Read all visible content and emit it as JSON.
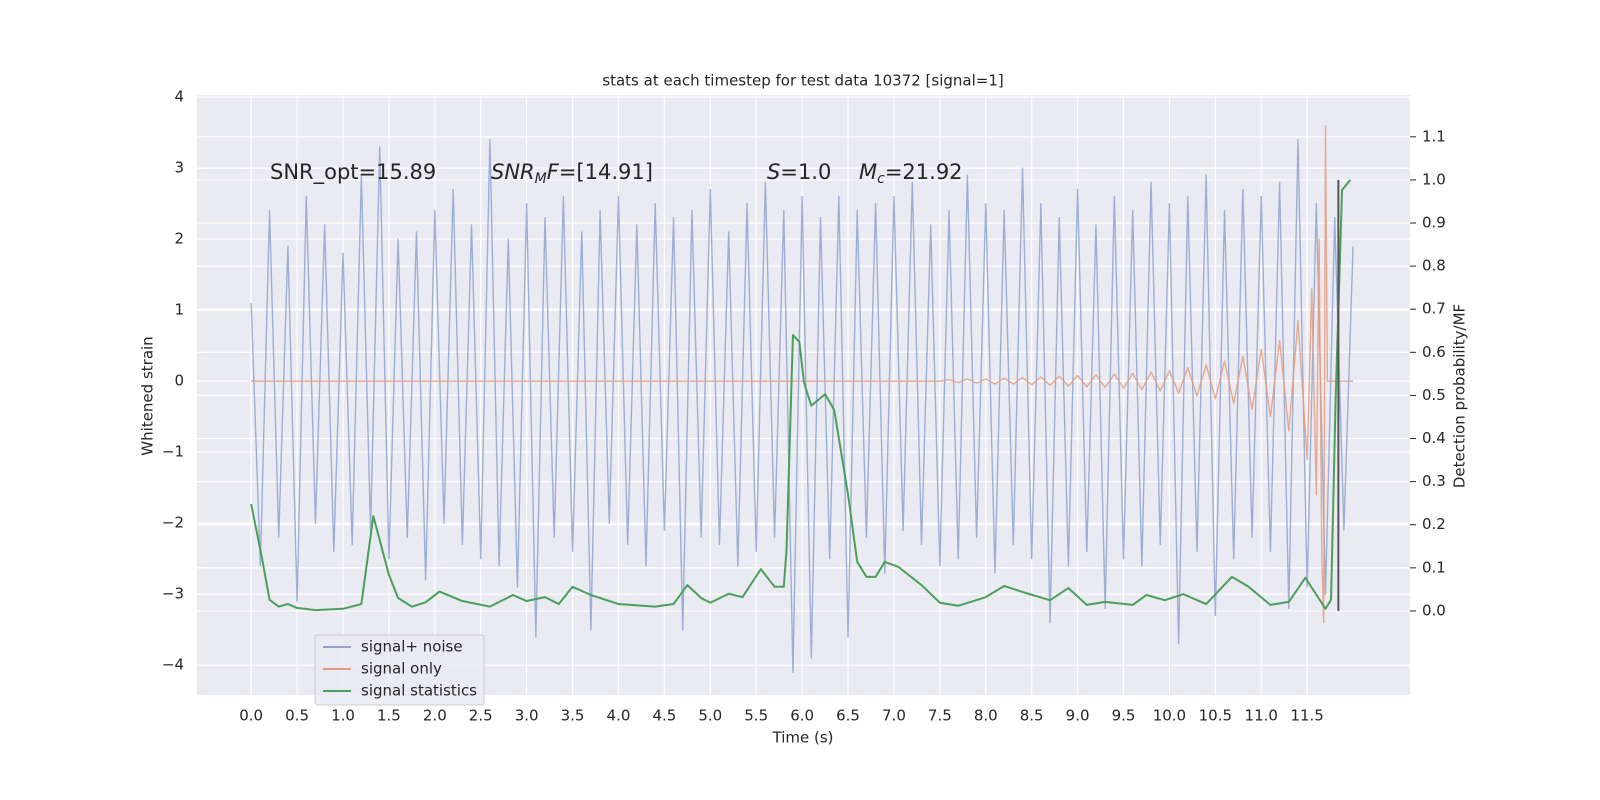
{
  "chart_data": {
    "type": "line",
    "title": "stats at each timestep for test data 10372 [signal=1]",
    "xlabel": "Time (s)",
    "ylabel": "Whitened strain",
    "y2label": "Detection probability/MF",
    "background": "#eaeaf2",
    "grid": true,
    "legend": "lower left",
    "xlim": [
      -0.59,
      12.62
    ],
    "ylim": [
      -4.42,
      4.03
    ],
    "y2lim": [
      -0.195,
      1.197
    ],
    "xticks": [
      {
        "value": 0,
        "label": "0.0"
      },
      0.5,
      {
        "value": 1,
        "label": "1.0"
      },
      1.5,
      {
        "value": 2,
        "label": "2.0"
      },
      2.5,
      {
        "value": 3,
        "label": "3.0"
      },
      3.5,
      {
        "value": 4,
        "label": "4.0"
      },
      4.5,
      {
        "value": 5,
        "label": "5.0"
      },
      5.5,
      {
        "value": 6,
        "label": "6.0"
      },
      6.5,
      {
        "value": 7,
        "label": "7.0"
      },
      7.5,
      {
        "value": 8,
        "label": "8.0"
      },
      8.5,
      {
        "value": 9,
        "label": "9.0"
      },
      9.5,
      {
        "value": 10,
        "label": "10.0"
      },
      10.5,
      {
        "value": 11,
        "label": "11.0"
      },
      11.5
    ],
    "yticks": [
      {
        "value": -4,
        "label": "−4"
      },
      {
        "value": -3,
        "label": "−3"
      },
      {
        "value": -2,
        "label": "−2"
      },
      {
        "value": -1,
        "label": "−1"
      },
      0,
      1,
      2,
      3,
      4
    ],
    "y2ticks": [
      {
        "value": 0,
        "label": "0.0"
      },
      0.1,
      0.2,
      0.3,
      0.4,
      0.5,
      0.6,
      0.7,
      0.8,
      0.9,
      {
        "value": 1,
        "label": "1.0"
      },
      1.1
    ],
    "annotations": [
      {
        "parts": [
          {
            "text": "SNR_opt=15.89"
          }
        ]
      },
      {
        "parts": [
          {
            "text": "SNR",
            "style": "italic"
          },
          {
            "text": "M",
            "style": "italic-sub"
          },
          {
            "text": "F",
            "style": "italic"
          },
          {
            "text": "=[14.91]"
          }
        ]
      },
      {
        "parts": [
          {
            "text": "S",
            "style": "italic"
          },
          {
            "text": "=1.0"
          }
        ]
      },
      {
        "parts": [
          {
            "text": "M",
            "style": "italic"
          },
          {
            "text": "c",
            "style": "italic-sub"
          },
          {
            "text": "=21.92"
          }
        ]
      }
    ],
    "vline": {
      "x": 11.84,
      "y2": [
        0,
        1
      ],
      "color": "#555555"
    },
    "series": [
      {
        "name": "signal+ noise",
        "color": "#8fa3cf",
        "axis": "y",
        "x": [
          0,
          0.1,
          0.2,
          0.3,
          0.4,
          0.5,
          0.6,
          0.7,
          0.8,
          0.9,
          1,
          1.1,
          1.2,
          1.3,
          1.4,
          1.5,
          1.6,
          1.7,
          1.8,
          1.9,
          2,
          2.1,
          2.2,
          2.3,
          2.4,
          2.5,
          2.6,
          2.7,
          2.8,
          2.9,
          3,
          3.1,
          3.2,
          3.3,
          3.4,
          3.5,
          3.6,
          3.7,
          3.8,
          3.9,
          4,
          4.1,
          4.2,
          4.3,
          4.4,
          4.5,
          4.6,
          4.7,
          4.8,
          4.9,
          5,
          5.1,
          5.2,
          5.3,
          5.4,
          5.5,
          5.6,
          5.7,
          5.8,
          5.9,
          6,
          6.1,
          6.2,
          6.3,
          6.4,
          6.5,
          6.6,
          6.7,
          6.8,
          6.9,
          7,
          7.1,
          7.2,
          7.3,
          7.4,
          7.5,
          7.6,
          7.7,
          7.8,
          7.9,
          8,
          8.1,
          8.2,
          8.3,
          8.4,
          8.5,
          8.6,
          8.7,
          8.8,
          8.9,
          9,
          9.1,
          9.2,
          9.3,
          9.4,
          9.5,
          9.6,
          9.7,
          9.8,
          9.9,
          10,
          10.1,
          10.2,
          10.3,
          10.4,
          10.5,
          10.6,
          10.7,
          10.8,
          10.9,
          11,
          11.1,
          11.2,
          11.3,
          11.4,
          11.5,
          11.6,
          11.7,
          11.8,
          11.9,
          12
        ],
        "values": [
          1.1,
          -2.6,
          2.4,
          -2.2,
          1.9,
          -3.1,
          2.6,
          -2.0,
          2.2,
          -2.4,
          1.8,
          -2.3,
          2.9,
          -2.1,
          3.3,
          -2.5,
          2.0,
          -2.2,
          2.1,
          -2.8,
          2.4,
          -2.0,
          2.7,
          -2.3,
          2.2,
          -2.5,
          3.4,
          -2.6,
          2.0,
          -2.9,
          2.5,
          -3.6,
          2.3,
          -2.2,
          2.6,
          -2.4,
          2.1,
          -3.5,
          2.4,
          -2.0,
          2.6,
          -2.3,
          2.2,
          -2.6,
          2.5,
          -2.1,
          2.3,
          -3.5,
          2.4,
          -2.2,
          2.7,
          -2.3,
          2.1,
          -2.6,
          2.5,
          -2.4,
          2.8,
          -2.2,
          2.4,
          -4.1,
          2.6,
          -3.9,
          2.3,
          -2.5,
          2.6,
          -3.6,
          2.4,
          -2.2,
          2.5,
          -2.7,
          2.6,
          -2.1,
          2.8,
          -2.3,
          2.2,
          -2.6,
          2.4,
          -2.5,
          2.9,
          -2.2,
          2.5,
          -2.7,
          2.4,
          -2.3,
          3.0,
          -2.5,
          2.5,
          -3.4,
          2.3,
          -2.6,
          2.7,
          -2.4,
          2.2,
          -3.2,
          2.6,
          -2.5,
          2.4,
          -2.6,
          2.8,
          -2.3,
          2.5,
          -3.7,
          2.6,
          -2.4,
          2.9,
          -3.3,
          2.4,
          -2.5,
          2.7,
          -2.2,
          2.6,
          -2.4,
          2.8,
          -3.2,
          3.4,
          -2.9,
          2.5,
          -3.0,
          2.3,
          -2.1,
          1.9
        ]
      },
      {
        "name": "signal only",
        "color": "#e59c7e",
        "axis": "y",
        "x": [
          0,
          7.5,
          7.6,
          7.7,
          7.8,
          7.9,
          8,
          8.1,
          8.2,
          8.3,
          8.4,
          8.5,
          8.6,
          8.7,
          8.8,
          8.9,
          9,
          9.1,
          9.2,
          9.3,
          9.4,
          9.5,
          9.6,
          9.7,
          9.8,
          9.9,
          10,
          10.1,
          10.2,
          10.3,
          10.4,
          10.5,
          10.6,
          10.7,
          10.8,
          10.9,
          11,
          11.1,
          11.2,
          11.3,
          11.4,
          11.5,
          11.55,
          11.6,
          11.63,
          11.66,
          11.68,
          11.7,
          11.72,
          12
        ],
        "values": [
          0,
          0,
          0.02,
          -0.02,
          0.03,
          -0.03,
          0.03,
          -0.04,
          0.04,
          -0.04,
          0.05,
          -0.05,
          0.06,
          -0.06,
          0.07,
          -0.07,
          0.08,
          -0.08,
          0.09,
          -0.09,
          0.1,
          -0.1,
          0.11,
          -0.12,
          0.13,
          -0.14,
          0.15,
          -0.17,
          0.19,
          -0.21,
          0.23,
          -0.25,
          0.28,
          -0.31,
          0.35,
          -0.4,
          0.45,
          -0.5,
          0.57,
          -0.7,
          0.85,
          -1.1,
          1.3,
          -1.6,
          2.0,
          -2.5,
          -3.4,
          3.6,
          0,
          0
        ]
      },
      {
        "name": "signal statistics",
        "color": "#4c9f5a",
        "axis": "y2",
        "x": [
          0,
          0.12,
          0.2,
          0.3,
          0.4,
          0.5,
          0.7,
          1.0,
          1.2,
          1.33,
          1.5,
          1.6,
          1.75,
          1.9,
          2.05,
          2.3,
          2.6,
          2.85,
          3.0,
          3.2,
          3.35,
          3.5,
          3.7,
          4.0,
          4.4,
          4.6,
          4.75,
          4.9,
          5.0,
          5.2,
          5.35,
          5.55,
          5.7,
          5.8,
          5.83,
          5.9,
          5.97,
          6.02,
          6.1,
          6.25,
          6.35,
          6.5,
          6.6,
          6.7,
          6.8,
          6.9,
          7.05,
          7.3,
          7.5,
          7.7,
          8.0,
          8.2,
          8.4,
          8.7,
          8.9,
          9.1,
          9.3,
          9.6,
          9.75,
          9.95,
          10.15,
          10.4,
          10.68,
          10.85,
          11.1,
          11.3,
          11.48,
          11.7,
          11.76,
          11.81,
          11.88,
          11.97
        ],
        "values": [
          0.248,
          0.12,
          0.026,
          0.01,
          0.016,
          0.007,
          0.002,
          0.005,
          0.016,
          0.22,
          0.084,
          0.03,
          0.01,
          0.02,
          0.045,
          0.023,
          0.01,
          0.037,
          0.023,
          0.032,
          0.016,
          0.056,
          0.037,
          0.016,
          0.01,
          0.016,
          0.06,
          0.03,
          0.019,
          0.04,
          0.032,
          0.097,
          0.056,
          0.056,
          0.14,
          0.64,
          0.624,
          0.53,
          0.476,
          0.503,
          0.466,
          0.27,
          0.114,
          0.079,
          0.079,
          0.114,
          0.102,
          0.06,
          0.019,
          0.012,
          0.032,
          0.058,
          0.044,
          0.025,
          0.053,
          0.014,
          0.021,
          0.014,
          0.037,
          0.025,
          0.039,
          0.016,
          0.079,
          0.058,
          0.014,
          0.021,
          0.077,
          0.005,
          0.026,
          0.49,
          0.977,
          1.0
        ]
      }
    ]
  }
}
